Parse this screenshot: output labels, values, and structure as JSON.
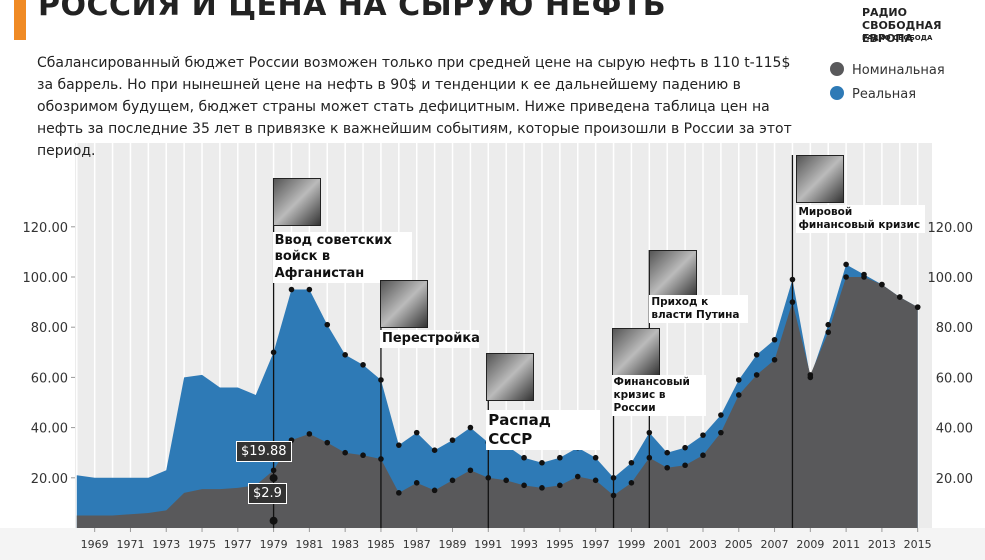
{
  "header": {
    "title": "РОССИЯ И ЦЕНА НА СЫРУЮ НЕФТЬ",
    "logo": "РАДИО СВОБОДНАЯ ЕВРОПА",
    "logo_sub": "РАДИО СВОБОДА",
    "intro": "Сбалансированный бюджет России возможен только при средней цене на сырую нефть в 110 t-115$ за баррель. Но при нынешней цене на нефть в 90$ и тенденции к ее дальнейшему падению в обозримом будущем, бюджет страны может стать дефицитным. Ниже приведена таблица цен на нефть за последние 35 лет в привязке к важнейшим событиям, которые произошли в России за этот период."
  },
  "chart_data": {
    "type": "area",
    "x": [
      1968,
      1969,
      1970,
      1971,
      1972,
      1973,
      1974,
      1975,
      1976,
      1977,
      1978,
      1979,
      1980,
      1981,
      1982,
      1983,
      1984,
      1985,
      1986,
      1987,
      1988,
      1989,
      1990,
      1991,
      1992,
      1993,
      1994,
      1995,
      1996,
      1997,
      1998,
      1999,
      2000,
      2001,
      2002,
      2003,
      2004,
      2005,
      2006,
      2007,
      2008,
      2009,
      2010,
      2011,
      2012,
      2013,
      2014,
      2015
    ],
    "series": [
      {
        "name": "Реальная",
        "color": "#2e7ab6",
        "values": [
          21,
          20,
          20,
          20,
          20,
          23,
          60,
          61,
          56,
          56,
          53,
          70,
          95,
          95,
          81,
          69,
          65,
          59,
          33,
          38,
          31,
          35,
          40,
          34,
          33,
          28,
          26,
          28,
          32,
          28,
          20,
          26,
          38,
          30,
          32,
          37,
          45,
          59,
          69,
          75,
          99,
          60,
          81,
          105,
          101,
          97,
          92,
          88
        ]
      },
      {
        "name": "Номинальная",
        "color": "#59595b",
        "values": [
          5,
          5,
          5,
          5.5,
          6,
          7,
          14,
          15.5,
          15.5,
          16,
          17,
          23,
          35,
          37.5,
          34,
          30,
          29,
          27.5,
          14,
          18,
          15,
          19,
          23,
          20,
          19,
          17,
          16,
          17,
          20.5,
          19,
          13,
          18,
          28,
          24,
          25,
          29,
          38,
          53,
          61,
          67,
          90,
          61,
          78,
          100,
          100,
          97,
          92,
          88
        ]
      }
    ],
    "xlim": [
      1967.9,
      2015.8
    ],
    "xticks": [
      1969,
      1971,
      1973,
      1975,
      1977,
      1979,
      1981,
      1983,
      1985,
      1987,
      1989,
      1991,
      1993,
      1995,
      1997,
      1999,
      2001,
      2003,
      2005,
      2007,
      2009,
      2011,
      2013,
      2015
    ],
    "ylim": [
      0,
      150
    ],
    "yticks": [
      {
        "value": 20,
        "label": "20.00"
      },
      {
        "value": 40,
        "label": "40.00"
      },
      {
        "value": 60,
        "label": "60.00"
      },
      {
        "value": 80,
        "label": "80.00"
      },
      {
        "value": 100,
        "label": "100.00"
      },
      {
        "value": 120,
        "label": "120.00"
      }
    ],
    "annotations": [
      {
        "x": 1979,
        "value": 19.88,
        "label": "$19.88"
      },
      {
        "x": 1979,
        "value": 2.9,
        "label": "$2.9"
      }
    ],
    "events": [
      {
        "year": 1979,
        "label": "Ввод советских войск в Афганистан"
      },
      {
        "year": 1985,
        "label": "Перестройка"
      },
      {
        "year": 1991,
        "label": "Распад СССР"
      },
      {
        "year": 1998,
        "label": "Финансовый кризис в России"
      },
      {
        "year": 2000,
        "label": "Приход к власти Путина"
      },
      {
        "year": 2008,
        "label": "Мировой финансовый кризис"
      }
    ]
  }
}
